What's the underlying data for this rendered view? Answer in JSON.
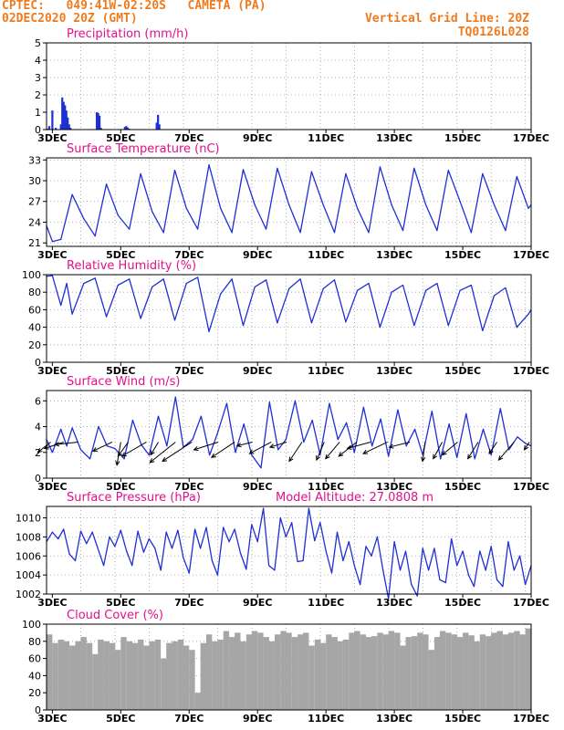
{
  "header": {
    "station_line": "CPTEC:   049:41W-02:20S   CAMETA (PA)",
    "date_line": "02DEC2020 20Z (GMT)",
    "grid_line": "Vertical Grid Line: 20Z",
    "run_code": "TQ0126L028"
  },
  "colors": {
    "header": "#f07a1e",
    "title": "#e0118a",
    "series": "#1f2fd6",
    "cloud": "#a6a6a6",
    "arrow": "#000000"
  },
  "chart_data": [
    {
      "id": "precip",
      "type": "bar",
      "title": "Precipitation (mm/h)",
      "ylim": [
        0,
        5
      ],
      "yticks": [
        0,
        1,
        2,
        3,
        4,
        5
      ],
      "xlim": [
        2.83,
        17.0
      ],
      "xtick_values": [
        3,
        5,
        7,
        9,
        11,
        13,
        15,
        17
      ],
      "xtick_labels": [
        "3DEC",
        "5DEC",
        "7DEC",
        "9DEC",
        "11DEC",
        "13DEC",
        "15DEC",
        "17DEC"
      ],
      "x": [
        2.87,
        2.91,
        3.0,
        3.1,
        3.25,
        3.29,
        3.33,
        3.37,
        3.41,
        3.45,
        3.49,
        3.53,
        4.3,
        4.34,
        4.38,
        4.42,
        5.12,
        5.16,
        5.2,
        5.24,
        6.05,
        6.09,
        6.13
      ],
      "values": [
        0.05,
        0.2,
        1.1,
        0.1,
        0.3,
        1.85,
        1.6,
        1.4,
        1.1,
        0.7,
        0.3,
        0.1,
        1.0,
        0.95,
        0.8,
        0.1,
        0.15,
        0.2,
        0.12,
        0.05,
        0.4,
        0.85,
        0.3
      ]
    },
    {
      "id": "temp",
      "type": "line",
      "title": "Surface Temperature (nC)",
      "ylim": [
        20.5,
        33.3
      ],
      "yticks": [
        21,
        24,
        27,
        30,
        33
      ],
      "xlim": [
        2.83,
        17.0
      ],
      "xtick_values": [
        3,
        5,
        7,
        9,
        11,
        13,
        15,
        17
      ],
      "xtick_labels": [
        "3DEC",
        "5DEC",
        "7DEC",
        "9DEC",
        "11DEC",
        "13DEC",
        "15DEC",
        "17DEC"
      ],
      "x": [
        2.83,
        3.0,
        3.25,
        3.58,
        3.92,
        4.25,
        4.58,
        4.92,
        5.25,
        5.58,
        5.92,
        6.25,
        6.58,
        6.92,
        7.25,
        7.58,
        7.92,
        8.25,
        8.58,
        8.92,
        9.25,
        9.58,
        9.92,
        10.25,
        10.58,
        10.92,
        11.25,
        11.58,
        11.92,
        12.25,
        12.58,
        12.92,
        13.25,
        13.58,
        13.92,
        14.25,
        14.58,
        14.92,
        15.25,
        15.58,
        15.92,
        16.25,
        16.58,
        16.92,
        17.0
      ],
      "values": [
        23.5,
        21.2,
        21.5,
        28.0,
        24.5,
        22.0,
        29.5,
        25.0,
        23.0,
        31.0,
        25.5,
        22.5,
        31.5,
        26.0,
        23.0,
        32.3,
        26.0,
        22.5,
        31.6,
        26.5,
        23.0,
        31.8,
        26.5,
        22.5,
        31.3,
        26.5,
        22.5,
        31.0,
        26.0,
        22.5,
        32.0,
        26.5,
        22.8,
        31.8,
        26.5,
        22.8,
        31.5,
        27.0,
        22.5,
        31.0,
        26.5,
        22.8,
        30.6,
        26.0,
        26.5
      ]
    },
    {
      "id": "rh",
      "type": "line",
      "title": "Relative Humidity (%)",
      "ylim": [
        0,
        100
      ],
      "yticks": [
        0,
        20,
        40,
        60,
        80,
        100
      ],
      "xlim": [
        2.83,
        17.0
      ],
      "xtick_values": [
        3,
        5,
        7,
        9,
        11,
        13,
        15,
        17
      ],
      "xtick_labels": [
        "3DEC",
        "5DEC",
        "7DEC",
        "9DEC",
        "11DEC",
        "13DEC",
        "15DEC",
        "17DEC"
      ],
      "x": [
        2.83,
        3.0,
        3.25,
        3.42,
        3.58,
        3.92,
        4.25,
        4.58,
        4.92,
        5.25,
        5.58,
        5.92,
        6.25,
        6.58,
        6.92,
        7.25,
        7.58,
        7.92,
        8.25,
        8.58,
        8.92,
        9.25,
        9.58,
        9.92,
        10.25,
        10.58,
        10.92,
        11.25,
        11.58,
        11.92,
        12.25,
        12.58,
        12.92,
        13.25,
        13.58,
        13.92,
        14.25,
        14.58,
        14.92,
        15.25,
        15.58,
        15.92,
        16.25,
        16.58,
        16.92,
        17.0
      ],
      "values": [
        98,
        99,
        65,
        90,
        55,
        90,
        96,
        52,
        88,
        95,
        50,
        86,
        95,
        48,
        90,
        97,
        35,
        78,
        95,
        42,
        86,
        94,
        45,
        84,
        95,
        45,
        84,
        94,
        46,
        82,
        90,
        40,
        80,
        88,
        42,
        82,
        90,
        42,
        82,
        88,
        36,
        76,
        85,
        40,
        55,
        60
      ]
    },
    {
      "id": "wind",
      "type": "line",
      "title": "Surface Wind (m/s)",
      "ylim": [
        0,
        6.8
      ],
      "yticks": [
        0,
        2,
        4,
        6
      ],
      "xlim": [
        2.83,
        17.0
      ],
      "xtick_values": [
        3,
        5,
        7,
        9,
        11,
        13,
        15,
        17
      ],
      "xtick_labels": [
        "3DEC",
        "5DEC",
        "7DEC",
        "9DEC",
        "11DEC",
        "13DEC",
        "15DEC",
        "17DEC"
      ],
      "x": [
        2.83,
        3.0,
        3.25,
        3.42,
        3.58,
        3.83,
        4.1,
        4.35,
        4.6,
        4.83,
        5.1,
        5.35,
        5.6,
        5.83,
        6.1,
        6.35,
        6.6,
        6.83,
        7.1,
        7.35,
        7.6,
        7.83,
        8.1,
        8.35,
        8.6,
        8.83,
        9.1,
        9.35,
        9.6,
        9.83,
        10.1,
        10.35,
        10.6,
        10.83,
        11.1,
        11.35,
        11.6,
        11.83,
        12.1,
        12.35,
        12.6,
        12.83,
        13.1,
        13.35,
        13.6,
        13.83,
        14.1,
        14.35,
        14.6,
        14.83,
        15.1,
        15.35,
        15.6,
        15.83,
        16.1,
        16.35,
        16.6,
        16.83,
        17.0
      ],
      "values": [
        3.0,
        2.0,
        3.8,
        2.5,
        3.9,
        2.2,
        1.5,
        4.0,
        2.5,
        2.3,
        1.5,
        4.5,
        2.6,
        1.8,
        4.8,
        2.5,
        6.3,
        2.4,
        3.0,
        4.8,
        1.8,
        3.5,
        5.8,
        2.0,
        4.2,
        1.8,
        0.8,
        5.9,
        2.2,
        3.0,
        6.0,
        2.8,
        4.5,
        1.8,
        5.8,
        3.0,
        4.3,
        2.0,
        5.5,
        2.5,
        4.6,
        1.7,
        5.3,
        2.5,
        3.8,
        1.8,
        5.2,
        1.5,
        4.2,
        1.6,
        5.0,
        1.5,
        3.8,
        1.8,
        5.4,
        2.2,
        3.2,
        2.7,
        2.5
      ],
      "vectors": [
        {
          "x": 2.95,
          "u": -1,
          "v": -0.8
        },
        {
          "x": 3.33,
          "u": -1.5,
          "v": -0.5
        },
        {
          "x": 3.75,
          "u": -1.8,
          "v": -0.2
        },
        {
          "x": 4.75,
          "u": -1.5,
          "v": -0.7
        },
        {
          "x": 5.0,
          "u": -0.3,
          "v": -1.8
        },
        {
          "x": 5.22,
          "u": -0.8,
          "v": -1.1
        },
        {
          "x": 5.75,
          "u": -1.9,
          "v": -1.1
        },
        {
          "x": 6.1,
          "u": -0.6,
          "v": -1.0
        },
        {
          "x": 6.6,
          "u": -2.0,
          "v": -1.6
        },
        {
          "x": 7.08,
          "u": -2.3,
          "v": -1.5
        },
        {
          "x": 7.85,
          "u": -1.9,
          "v": -0.6
        },
        {
          "x": 8.33,
          "u": -1.8,
          "v": -1.2
        },
        {
          "x": 8.85,
          "u": -1.2,
          "v": -0.3
        },
        {
          "x": 9.4,
          "u": -1.7,
          "v": -0.9
        },
        {
          "x": 9.85,
          "u": -1.3,
          "v": -0.4
        },
        {
          "x": 10.3,
          "u": -1.0,
          "v": -1.5
        },
        {
          "x": 10.95,
          "u": -0.6,
          "v": -1.4
        },
        {
          "x": 11.4,
          "u": -1.1,
          "v": -1.3
        },
        {
          "x": 11.9,
          "u": -1.4,
          "v": -1.1
        },
        {
          "x": 12.3,
          "u": -1.8,
          "v": -0.5
        },
        {
          "x": 12.8,
          "u": -1.9,
          "v": -0.9
        },
        {
          "x": 13.45,
          "u": -1.6,
          "v": -0.4
        },
        {
          "x": 13.9,
          "u": -0.2,
          "v": -1.5
        },
        {
          "x": 14.4,
          "u": -0.7,
          "v": -1.3
        },
        {
          "x": 14.85,
          "u": -1.2,
          "v": -1.0
        },
        {
          "x": 15.45,
          "u": -0.8,
          "v": -1.3
        },
        {
          "x": 16.0,
          "u": -0.6,
          "v": -0.9
        },
        {
          "x": 16.5,
          "u": -1.2,
          "v": -1.4
        },
        {
          "x": 16.95,
          "u": -0.4,
          "v": -0.6
        }
      ]
    },
    {
      "id": "pressure",
      "type": "line",
      "title": "Surface Pressure (hPa)",
      "annotation": "Model Altitude: 27.0808 m",
      "ylim": [
        1002,
        1011.2
      ],
      "yticks": [
        1002,
        1004,
        1006,
        1008,
        1010
      ],
      "xlim": [
        2.83,
        17.0
      ],
      "xtick_values": [
        3,
        5,
        7,
        9,
        11,
        13,
        15,
        17
      ],
      "xtick_labels": [
        "3DEC",
        "5DEC",
        "7DEC",
        "9DEC",
        "11DEC",
        "13DEC",
        "15DEC",
        "17DEC"
      ],
      "x": [
        2.83,
        3.0,
        3.17,
        3.33,
        3.5,
        3.67,
        3.83,
        4.0,
        4.17,
        4.33,
        4.5,
        4.67,
        4.83,
        5.0,
        5.17,
        5.33,
        5.5,
        5.67,
        5.83,
        6.0,
        6.17,
        6.33,
        6.5,
        6.67,
        6.83,
        7.0,
        7.17,
        7.33,
        7.5,
        7.67,
        7.83,
        8.0,
        8.17,
        8.33,
        8.5,
        8.67,
        8.83,
        9.0,
        9.17,
        9.33,
        9.5,
        9.67,
        9.83,
        10.0,
        10.17,
        10.33,
        10.5,
        10.67,
        10.83,
        11.0,
        11.17,
        11.33,
        11.5,
        11.67,
        11.83,
        12.0,
        12.17,
        12.33,
        12.5,
        12.67,
        12.83,
        13.0,
        13.17,
        13.33,
        13.5,
        13.67,
        13.83,
        14.0,
        14.17,
        14.33,
        14.5,
        14.67,
        14.83,
        15.0,
        15.17,
        15.33,
        15.5,
        15.67,
        15.83,
        16.0,
        16.17,
        16.33,
        16.5,
        16.67,
        16.83,
        17.0
      ],
      "values": [
        1007.5,
        1008.5,
        1007.8,
        1008.8,
        1006.2,
        1005.5,
        1008.6,
        1007.3,
        1008.5,
        1006.8,
        1005.0,
        1008.0,
        1007.0,
        1008.7,
        1006.5,
        1005.0,
        1008.6,
        1006.4,
        1007.8,
        1006.8,
        1004.5,
        1008.5,
        1006.8,
        1008.7,
        1005.8,
        1004.2,
        1008.8,
        1006.8,
        1009.0,
        1005.5,
        1004.0,
        1009.0,
        1007.5,
        1008.8,
        1006.3,
        1004.6,
        1009.3,
        1007.5,
        1011.0,
        1005.0,
        1004.5,
        1010.0,
        1008.0,
        1009.5,
        1005.4,
        1005.5,
        1011.0,
        1007.6,
        1009.5,
        1006.5,
        1004.2,
        1008.5,
        1005.5,
        1007.5,
        1005.0,
        1003.0,
        1007.0,
        1006.0,
        1008.0,
        1004.5,
        1001.5,
        1007.5,
        1004.5,
        1006.5,
        1003.0,
        1001.8,
        1006.8,
        1004.5,
        1006.8,
        1003.5,
        1003.2,
        1007.8,
        1005.0,
        1006.5,
        1004.0,
        1002.8,
        1006.5,
        1004.5,
        1007.0,
        1003.5,
        1002.8,
        1007.5,
        1004.5,
        1006.0,
        1003.0,
        1005.0
      ]
    },
    {
      "id": "cloud",
      "type": "bar",
      "title": "Cloud Cover (%)",
      "ylim": [
        0,
        100
      ],
      "yticks": [
        0,
        20,
        40,
        60,
        80,
        100
      ],
      "xlim": [
        2.83,
        17.0
      ],
      "xtick_values": [
        3,
        5,
        7,
        9,
        11,
        13,
        15,
        17
      ],
      "xtick_labels": [
        "3DEC",
        "5DEC",
        "7DEC",
        "9DEC",
        "11DEC",
        "13DEC",
        "15DEC",
        "17DEC"
      ],
      "x": [
        2.83,
        3.0,
        3.17,
        3.33,
        3.5,
        3.67,
        3.83,
        4.0,
        4.17,
        4.33,
        4.5,
        4.67,
        4.83,
        5.0,
        5.17,
        5.33,
        5.5,
        5.67,
        5.83,
        6.0,
        6.17,
        6.33,
        6.5,
        6.67,
        6.83,
        7.0,
        7.17,
        7.33,
        7.5,
        7.67,
        7.83,
        8.0,
        8.17,
        8.33,
        8.5,
        8.67,
        8.83,
        9.0,
        9.17,
        9.33,
        9.5,
        9.67,
        9.83,
        10.0,
        10.17,
        10.33,
        10.5,
        10.67,
        10.83,
        11.0,
        11.17,
        11.33,
        11.5,
        11.67,
        11.83,
        12.0,
        12.17,
        12.33,
        12.5,
        12.67,
        12.83,
        13.0,
        13.17,
        13.33,
        13.5,
        13.67,
        13.83,
        14.0,
        14.17,
        14.33,
        14.5,
        14.67,
        14.83,
        15.0,
        15.17,
        15.33,
        15.5,
        15.67,
        15.83,
        16.0,
        16.17,
        16.33,
        16.5,
        16.67,
        16.83
      ],
      "values": [
        88,
        78,
        82,
        80,
        75,
        80,
        85,
        78,
        65,
        82,
        80,
        78,
        70,
        85,
        80,
        78,
        82,
        75,
        80,
        82,
        60,
        78,
        80,
        82,
        75,
        70,
        20,
        78,
        88,
        80,
        82,
        92,
        85,
        90,
        80,
        88,
        92,
        90,
        85,
        80,
        88,
        92,
        90,
        85,
        88,
        90,
        75,
        82,
        78,
        88,
        85,
        80,
        82,
        90,
        92,
        88,
        85,
        86,
        90,
        88,
        92,
        90,
        75,
        85,
        86,
        90,
        88,
        70,
        85,
        92,
        90,
        88,
        85,
        90,
        87,
        80,
        88,
        86,
        90,
        92,
        88,
        90,
        92,
        88,
        95
      ]
    }
  ]
}
